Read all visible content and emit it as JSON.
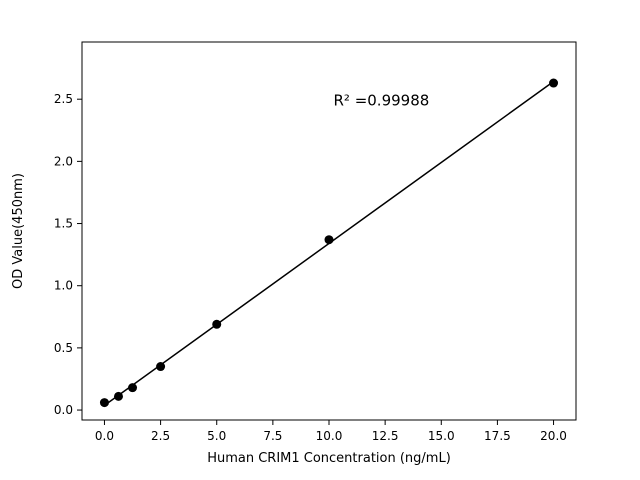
{
  "figure": {
    "background": "#ffffff"
  },
  "chart_data": {
    "type": "scatter",
    "title": "",
    "xlabel": "Human CRIM1 Concentration (ng/mL)",
    "ylabel": "OD Value(450nm)",
    "xlim": [
      -1,
      21
    ],
    "ylim": [
      -0.08,
      2.96
    ],
    "xticks": [
      0.0,
      2.5,
      5.0,
      7.5,
      10.0,
      12.5,
      15.0,
      17.5,
      20.0
    ],
    "xtick_labels": [
      "0.0",
      "2.5",
      "5.0",
      "7.5",
      "10.0",
      "12.5",
      "15.0",
      "17.5",
      "20.0"
    ],
    "yticks": [
      0.0,
      0.5,
      1.0,
      1.5,
      2.0,
      2.5
    ],
    "ytick_labels": [
      "0.0",
      "0.5",
      "1.0",
      "1.5",
      "2.0",
      "2.5"
    ],
    "x": [
      0,
      0.625,
      1.25,
      2.5,
      5,
      10,
      20
    ],
    "y": [
      0.06,
      0.11,
      0.18,
      0.35,
      0.69,
      1.37,
      2.63
    ],
    "fit": "linear",
    "grid": false,
    "legend": null,
    "marker_color": "#000000",
    "line_color": "#000000",
    "annotation": {
      "text": "R² =0.99988",
      "x": 10.2,
      "y": 2.45
    }
  }
}
